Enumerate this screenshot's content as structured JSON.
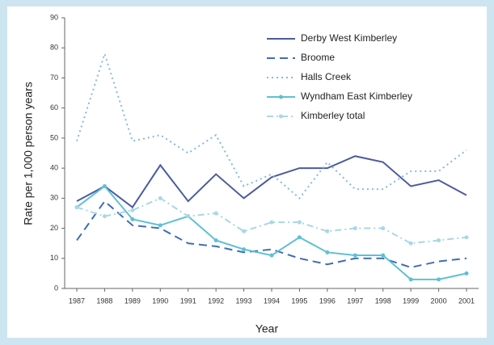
{
  "chart_data": {
    "type": "line",
    "xlabel": "Year",
    "ylabel": "Rate per 1,000 person years",
    "categories": [
      "1987",
      "1988",
      "1989",
      "1990",
      "1991",
      "1992",
      "1993",
      "1994",
      "1995",
      "1996",
      "1997",
      "1998",
      "1999",
      "2000",
      "2001"
    ],
    "series": [
      {
        "name": "Derby West Kimberley",
        "color": "#4b5b9e",
        "dash": "solid",
        "marker": false,
        "values": [
          29,
          34,
          27,
          41,
          29,
          38,
          30,
          37,
          40,
          40,
          44,
          42,
          34,
          36,
          31
        ]
      },
      {
        "name": "Broome",
        "color": "#3f6db5",
        "dash": "dashed",
        "marker": false,
        "values": [
          16,
          29,
          21,
          20,
          15,
          14,
          12,
          13,
          10,
          8,
          10,
          10,
          7,
          9,
          10
        ]
      },
      {
        "name": "Halls Creek",
        "color": "#86b8e2",
        "dash": "dotted",
        "marker": false,
        "values": [
          49,
          78,
          49,
          51,
          45,
          51,
          34,
          38,
          30,
          42,
          33,
          33,
          39,
          39,
          46
        ]
      },
      {
        "name": "Wyndham East Kimberley",
        "color": "#5fc0d4",
        "dash": "solid",
        "marker": true,
        "values": [
          27,
          34,
          23,
          21,
          24,
          16,
          13,
          11,
          17,
          12,
          11,
          11,
          3,
          3,
          5
        ]
      },
      {
        "name": "Kimberley total",
        "color": "#a9d7e6",
        "dash": "dashdot",
        "marker": true,
        "values": [
          27,
          24,
          26,
          30,
          24,
          25,
          19,
          22,
          22,
          19,
          20,
          20,
          15,
          16,
          17
        ]
      }
    ],
    "ylim": [
      0,
      90
    ],
    "yticks": [
      0,
      10,
      20,
      30,
      40,
      50,
      60,
      70,
      80,
      90
    ],
    "legend": "upper right",
    "grid": false
  }
}
